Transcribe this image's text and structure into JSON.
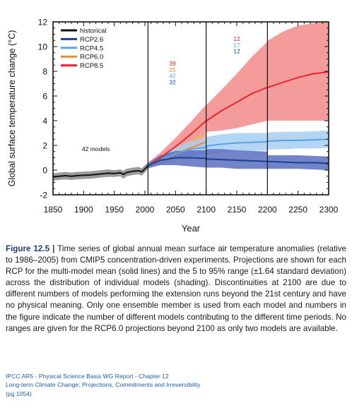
{
  "chart_data": {
    "type": "line",
    "title": "",
    "xlabel": "Year",
    "ylabel": "Global surface temperature change (°C)",
    "xlim": [
      1850,
      2300
    ],
    "ylim": [
      -2,
      12
    ],
    "xticks": [
      1850,
      1900,
      1950,
      2000,
      2050,
      2100,
      2150,
      2200,
      2250,
      2300
    ],
    "yticks": [
      -2,
      0,
      2,
      4,
      6,
      8,
      10,
      12
    ],
    "vlines": [
      2005,
      2100,
      2200
    ],
    "grid": false,
    "legend_position": "top-left",
    "legend": [
      {
        "label": "historical",
        "color": "#111111"
      },
      {
        "label": "RCP2.6",
        "color": "#1d3f8f"
      },
      {
        "label": "RCP4.5",
        "color": "#5aa3e0"
      },
      {
        "label": "RCP6.0",
        "color": "#f08a32"
      },
      {
        "label": "RCP8.5",
        "color": "#e8262a"
      }
    ],
    "annotations": [
      {
        "text": "42 models",
        "x": 1920,
        "y": 1.55,
        "color": "#111111"
      },
      {
        "text": "39",
        "x": 2045,
        "y": 8.45,
        "color": "#e8262a"
      },
      {
        "text": "25",
        "x": 2045,
        "y": 7.95,
        "color": "#f08a32"
      },
      {
        "text": "42",
        "x": 2045,
        "y": 7.45,
        "color": "#5aa3e0"
      },
      {
        "text": "32",
        "x": 2045,
        "y": 6.95,
        "color": "#1d3f8f"
      },
      {
        "text": "12",
        "x": 2150,
        "y": 10.45,
        "color": "#e8262a"
      },
      {
        "text": "17",
        "x": 2150,
        "y": 9.95,
        "color": "#5aa3e0"
      },
      {
        "text": "12",
        "x": 2150,
        "y": 9.45,
        "color": "#1d3f8f"
      }
    ],
    "series": [
      {
        "name": "historical",
        "color": "#111111",
        "band_color": "#8a8a8a",
        "x": [
          1850,
          1860,
          1870,
          1880,
          1890,
          1900,
          1910,
          1920,
          1930,
          1940,
          1950,
          1960,
          1965,
          1970,
          1980,
          1990,
          1995,
          2000,
          2005
        ],
        "y": [
          -0.55,
          -0.5,
          -0.45,
          -0.5,
          -0.45,
          -0.42,
          -0.4,
          -0.35,
          -0.3,
          -0.25,
          -0.28,
          -0.22,
          -0.35,
          -0.2,
          -0.1,
          -0.05,
          -0.15,
          0.1,
          0.35
        ],
        "lower": [
          -0.85,
          -0.8,
          -0.75,
          -0.8,
          -0.75,
          -0.72,
          -0.7,
          -0.65,
          -0.6,
          -0.55,
          -0.55,
          -0.5,
          -0.7,
          -0.5,
          -0.4,
          -0.35,
          -0.45,
          -0.2,
          0.1
        ],
        "upper": [
          -0.25,
          -0.2,
          -0.15,
          -0.2,
          -0.15,
          -0.12,
          -0.1,
          -0.05,
          0.0,
          0.05,
          0.0,
          0.05,
          -0.05,
          0.1,
          0.2,
          0.25,
          0.15,
          0.4,
          0.6
        ]
      },
      {
        "name": "RCP8.5",
        "color": "#e8262a",
        "band_color": "#f2898b",
        "x": [
          2005,
          2025,
          2050,
          2075,
          2100,
          2101,
          2125,
          2150,
          2175,
          2200,
          2201,
          2225,
          2250,
          2275,
          2300
        ],
        "y": [
          0.35,
          1.0,
          1.9,
          2.9,
          4.0,
          4.0,
          4.8,
          5.5,
          6.2,
          6.7,
          6.7,
          7.1,
          7.5,
          7.8,
          7.95
        ],
        "lower": [
          0.1,
          0.6,
          1.3,
          2.0,
          2.8,
          3.1,
          3.2,
          3.4,
          3.7,
          4.0,
          4.0,
          4.0,
          4.0,
          4.0,
          4.0
        ],
        "upper": [
          0.6,
          1.4,
          2.6,
          3.9,
          5.3,
          5.3,
          6.5,
          7.8,
          9.2,
          10.4,
          10.5,
          11.2,
          11.7,
          11.9,
          12.0
        ]
      },
      {
        "name": "RCP6.0",
        "color": "#f08a32",
        "band_color": "#f6b27a",
        "x": [
          2005,
          2025,
          2050,
          2075,
          2100
        ],
        "y": [
          0.35,
          0.8,
          1.3,
          1.8,
          2.3
        ],
        "lower": [
          0.15,
          0.45,
          0.85,
          1.25,
          1.6
        ],
        "upper": [
          0.55,
          1.15,
          1.8,
          2.4,
          3.0
        ]
      },
      {
        "name": "RCP4.5",
        "color": "#5aa3e0",
        "band_color": "#a6cff2",
        "x": [
          2005,
          2025,
          2050,
          2075,
          2100,
          2101,
          2125,
          2150,
          2175,
          2200,
          2201,
          2225,
          2250,
          2275,
          2300
        ],
        "y": [
          0.35,
          0.8,
          1.35,
          1.7,
          1.85,
          1.95,
          2.1,
          2.2,
          2.25,
          2.3,
          2.35,
          2.4,
          2.4,
          2.45,
          2.5
        ],
        "lower": [
          0.15,
          0.5,
          0.85,
          1.1,
          1.2,
          1.3,
          1.4,
          1.5,
          1.55,
          1.6,
          1.65,
          1.7,
          1.75,
          1.75,
          1.8
        ],
        "upper": [
          0.55,
          1.1,
          1.8,
          2.3,
          2.6,
          2.7,
          2.9,
          3.0,
          3.0,
          3.0,
          3.05,
          3.1,
          3.1,
          3.15,
          3.2
        ]
      },
      {
        "name": "RCP2.6",
        "color": "#1d3f8f",
        "band_color": "#5a6fc2",
        "x": [
          2005,
          2025,
          2050,
          2075,
          2100,
          2101,
          2125,
          2150,
          2175,
          2200,
          2201,
          2225,
          2250,
          2275,
          2300
        ],
        "y": [
          0.35,
          0.8,
          1.0,
          1.0,
          0.95,
          0.9,
          0.85,
          0.8,
          0.75,
          0.7,
          0.7,
          0.65,
          0.6,
          0.6,
          0.55
        ],
        "lower": [
          0.15,
          0.4,
          0.4,
          0.3,
          0.2,
          0.2,
          0.2,
          0.1,
          0.1,
          0.1,
          0.1,
          0.1,
          0.1,
          0.05,
          0.0
        ],
        "upper": [
          0.55,
          1.2,
          1.55,
          1.6,
          1.6,
          1.7,
          1.7,
          1.6,
          1.55,
          1.5,
          1.2,
          1.2,
          1.2,
          1.15,
          1.1
        ]
      }
    ]
  },
  "caption": {
    "figure_label": "Figure 12.5 |",
    "text": "Time series of global annual mean surface air temperature anomalies (relative to 1986–2005) from CMIP5 concentration-driven experiments. Projections are shown for each RCP for the multi-model mean (solid lines) and the 5 to 95% range (±1.64 standard deviation) across the distribution of individual models (shading). Discontinuities at 2100 are due to different numbers of models performing the extension runs beyond the 21st century and have no physical meaning. Only one ensemble member is used from each model and numbers in the figure indicate the number of different models contributing to the different time periods. No ranges are given for the RCP6.0 projections beyond 2100 as only two models are available."
  },
  "source": {
    "line1": "IPCC AR5 - Physical Science Basis WG Report - Chapter 12",
    "line2": "Long-term Climate Change: Projections, Commitments and Irreversibility",
    "line3": "(pg 1054)"
  }
}
